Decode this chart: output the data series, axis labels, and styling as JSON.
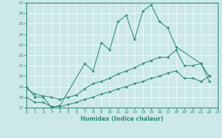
{
  "xlabel": "Humidex (Indice chaleur)",
  "xlim": [
    0,
    23
  ],
  "ylim": [
    17,
    27
  ],
  "xticks": [
    0,
    1,
    2,
    3,
    4,
    5,
    6,
    7,
    8,
    9,
    10,
    11,
    12,
    13,
    14,
    15,
    16,
    17,
    18,
    19,
    20,
    21,
    22,
    23
  ],
  "yticks": [
    17,
    18,
    19,
    20,
    21,
    22,
    23,
    24,
    25,
    26,
    27
  ],
  "line_color": "#2e8b7a",
  "bg_color": "#cce8ea",
  "grid_color": "#b0d4d8",
  "line1_x": [
    0,
    1,
    2,
    3,
    4,
    7,
    8,
    9,
    10,
    11,
    12,
    13,
    14,
    15,
    16,
    17,
    18,
    21,
    22
  ],
  "line1_y": [
    19,
    18,
    18,
    17,
    17.2,
    21.2,
    20.5,
    23.2,
    22.5,
    25.2,
    25.8,
    23.5,
    26.2,
    26.8,
    25.2,
    24.6,
    22.8,
    21.2,
    19.5
  ],
  "line2_x": [
    0,
    1,
    2,
    3,
    4,
    5,
    6,
    7,
    8,
    9,
    10,
    11,
    12,
    13,
    14,
    15,
    16,
    17,
    18,
    19,
    20,
    21,
    22
  ],
  "line2_y": [
    18.8,
    18.3,
    18.1,
    18.0,
    17.8,
    18.0,
    18.2,
    18.8,
    19.3,
    19.5,
    19.8,
    20.2,
    20.5,
    20.8,
    21.2,
    21.5,
    21.8,
    21.8,
    22.5,
    21.0,
    21.0,
    21.2,
    20.0
  ],
  "line3_x": [
    0,
    1,
    2,
    3,
    4,
    5,
    6,
    7,
    8,
    9,
    10,
    11,
    12,
    13,
    14,
    15,
    16,
    17,
    18,
    19,
    20,
    21,
    22
  ],
  "line3_y": [
    18.0,
    17.5,
    17.5,
    17.1,
    17.1,
    17.3,
    17.5,
    17.8,
    18.0,
    18.3,
    18.5,
    18.8,
    19.0,
    19.3,
    19.5,
    19.8,
    20.0,
    20.3,
    20.5,
    19.8,
    19.8,
    19.5,
    20.0
  ]
}
